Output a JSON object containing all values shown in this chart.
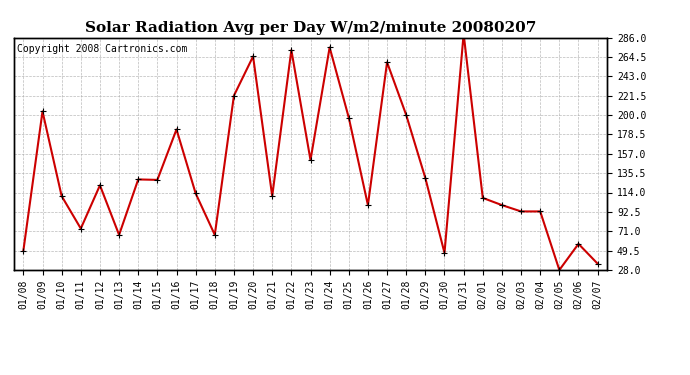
{
  "title": "Solar Radiation Avg per Day W/m2/minute 20080207",
  "copyright": "Copyright 2008 Cartronics.com",
  "x_labels": [
    "01/08",
    "01/09",
    "01/10",
    "01/11",
    "01/12",
    "01/13",
    "01/14",
    "01/15",
    "01/16",
    "01/17",
    "01/18",
    "01/19",
    "01/20",
    "01/21",
    "01/22",
    "01/23",
    "01/24",
    "01/25",
    "01/26",
    "01/27",
    "01/28",
    "01/29",
    "01/30",
    "01/31",
    "02/01",
    "02/02",
    "02/03",
    "02/04",
    "02/05",
    "02/06",
    "02/07"
  ],
  "y_values": [
    49.5,
    204.0,
    110.0,
    74.0,
    122.0,
    67.0,
    128.5,
    128.0,
    184.0,
    113.0,
    67.0,
    221.5,
    265.0,
    110.0,
    272.0,
    150.0,
    275.0,
    197.0,
    100.0,
    258.5,
    200.0,
    130.0,
    47.0,
    290.0,
    108.0,
    100.0,
    93.0,
    93.0,
    28.0,
    57.0,
    35.0
  ],
  "line_color": "#cc0000",
  "marker": "+",
  "marker_size": 5,
  "ylim": [
    28.0,
    286.0
  ],
  "yticks": [
    28.0,
    49.5,
    71.0,
    92.5,
    114.0,
    135.5,
    157.0,
    178.5,
    200.0,
    221.5,
    243.0,
    264.5,
    286.0
  ],
  "background_color": "#ffffff",
  "plot_bg_color": "#ffffff",
  "grid_color": "#aaaaaa",
  "title_fontsize": 11,
  "copyright_fontsize": 7,
  "tick_fontsize": 7
}
